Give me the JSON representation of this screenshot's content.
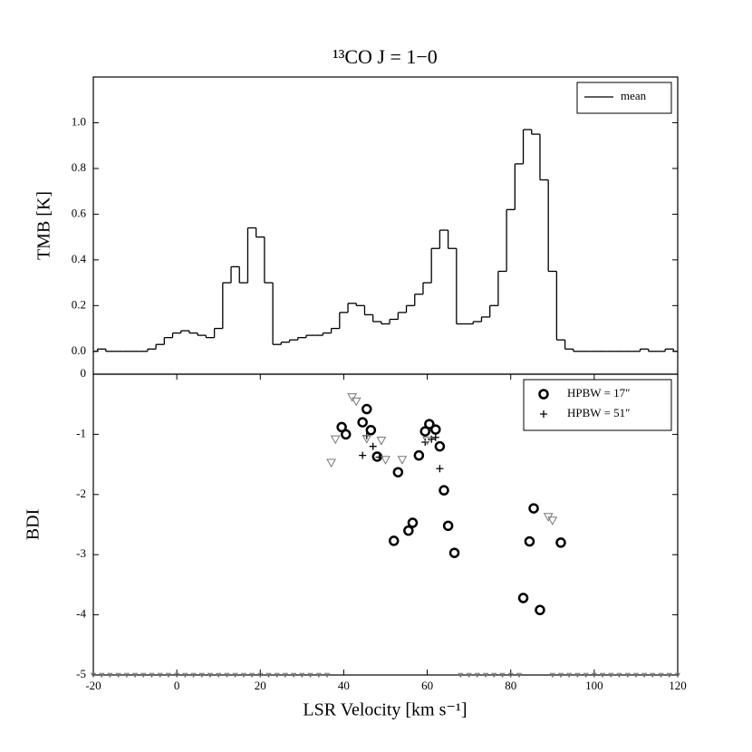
{
  "chart_data": [
    {
      "type": "line",
      "title": "¹³CO J = 1−0",
      "ylabel": "TMB [K]",
      "drawstyle": "steps-mid",
      "x": [
        -20,
        -18,
        -16,
        -14,
        -12,
        -10,
        -8,
        -6,
        -4,
        -2,
        0,
        2,
        4,
        6,
        8,
        10,
        12,
        14,
        16,
        18,
        20,
        22,
        24,
        26,
        28,
        30,
        32,
        34,
        36,
        38,
        40,
        42,
        44,
        46,
        48,
        50,
        52,
        54,
        56,
        58,
        60,
        62,
        64,
        66,
        68,
        70,
        72,
        74,
        76,
        78,
        80,
        82,
        84,
        86,
        88,
        90,
        92,
        94,
        96,
        98,
        100,
        102,
        104,
        106,
        108,
        110,
        112,
        114,
        116,
        118,
        120
      ],
      "series": [
        {
          "name": "mean",
          "color": "#000000",
          "values": [
            0.0,
            0.01,
            0.0,
            0.0,
            0.0,
            0.0,
            0.0,
            0.01,
            0.03,
            0.06,
            0.08,
            0.09,
            0.08,
            0.07,
            0.06,
            0.1,
            0.3,
            0.37,
            0.3,
            0.54,
            0.5,
            0.3,
            0.03,
            0.04,
            0.05,
            0.06,
            0.07,
            0.07,
            0.08,
            0.1,
            0.17,
            0.21,
            0.2,
            0.16,
            0.13,
            0.12,
            0.14,
            0.17,
            0.2,
            0.25,
            0.3,
            0.45,
            0.53,
            0.45,
            0.12,
            0.12,
            0.13,
            0.15,
            0.2,
            0.35,
            0.62,
            0.82,
            0.97,
            0.95,
            0.75,
            0.35,
            0.05,
            0.01,
            0.0,
            0.0,
            0.0,
            0.0,
            0.0,
            0.0,
            0.0,
            0.0,
            0.01,
            0.0,
            0.0,
            0.01,
            0.0
          ]
        }
      ],
      "xlim": [
        -20,
        120
      ],
      "ylim": [
        -0.1,
        1.2
      ],
      "yticks": [
        {
          "value": 0,
          "label": "0.0"
        },
        0.2,
        0.4,
        0.6,
        0.8,
        {
          "value": 1,
          "label": "1.0"
        }
      ],
      "legend": "upper right"
    },
    {
      "type": "scatter",
      "xlabel": "LSR Velocity [km s⁻¹]",
      "ylabel": "BDI",
      "xlim": [
        -20,
        120
      ],
      "ylim": [
        -5,
        0
      ],
      "xticks": [
        -20,
        0,
        20,
        40,
        60,
        80,
        100,
        120
      ],
      "yticks": [
        -5,
        -4,
        -3,
        -2,
        -1,
        0
      ],
      "legend": "upper right",
      "series": [
        {
          "name": "HPBW = 17″",
          "marker": "circle",
          "color": "#000000",
          "x": [
            39.5,
            40.5,
            44.5,
            45.5,
            46.5,
            48,
            52,
            53,
            55.5,
            56.5,
            58,
            59.5,
            60.5,
            62,
            63,
            64,
            65,
            66.5,
            83,
            84.5,
            85.5,
            87,
            92
          ],
          "values": [
            -0.88,
            -1.0,
            -0.8,
            -0.58,
            -0.93,
            -1.37,
            -2.77,
            -1.63,
            -2.6,
            -2.47,
            -1.35,
            -0.95,
            -0.83,
            -0.92,
            -1.2,
            -1.93,
            -2.52,
            -2.97,
            -3.72,
            -2.78,
            -2.23,
            -3.92,
            -2.8
          ]
        },
        {
          "name": "HPBW = 51″",
          "marker": "plus",
          "color": "#000000",
          "x": [
            44.5,
            45.5,
            47,
            48.5,
            59.5,
            61,
            62,
            63
          ],
          "values": [
            -1.35,
            -1.02,
            -1.2,
            -1.38,
            -1.13,
            -1.08,
            -1.05,
            -1.57
          ]
        },
        {
          "marker": "triangle",
          "color": "#777777",
          "x": [
            37,
            38,
            42,
            43,
            45.5,
            49,
            50,
            54,
            60,
            89,
            90
          ],
          "values": [
            -1.47,
            -1.08,
            -0.38,
            -0.45,
            -1.07,
            -1.1,
            -1.42,
            -1.42,
            -1.1,
            -2.37,
            -2.43
          ]
        },
        {
          "marker": "triangle-small",
          "color": "#777777",
          "x": [
            -20,
            -18,
            -16,
            -14,
            -12,
            -10,
            -8,
            -6,
            -4,
            -2,
            0,
            2,
            4,
            6,
            8,
            10,
            12,
            14,
            16,
            18,
            20,
            22,
            24,
            26,
            28,
            30,
            32,
            34,
            36,
            68,
            70,
            72,
            74,
            76,
            78,
            80,
            82,
            90,
            92,
            94,
            96,
            98,
            100,
            102,
            104,
            106,
            108,
            110,
            112,
            114,
            116,
            118,
            120
          ],
          "values": [
            -5,
            -5,
            -5,
            -5,
            -5,
            -5,
            -5,
            -5,
            -5,
            -5,
            -5,
            -5,
            -5,
            -5,
            -5,
            -5,
            -5,
            -5,
            -5,
            -5,
            -5,
            -5,
            -5,
            -5,
            -5,
            -5,
            -5,
            -5,
            -5,
            -5,
            -5,
            -5,
            -5,
            -5,
            -5,
            -5,
            -5,
            -5,
            -5,
            -5,
            -5,
            -5,
            -5,
            -5,
            -5,
            -5,
            -5,
            -5,
            -5,
            -5,
            -5,
            -5,
            -5
          ]
        }
      ]
    }
  ]
}
